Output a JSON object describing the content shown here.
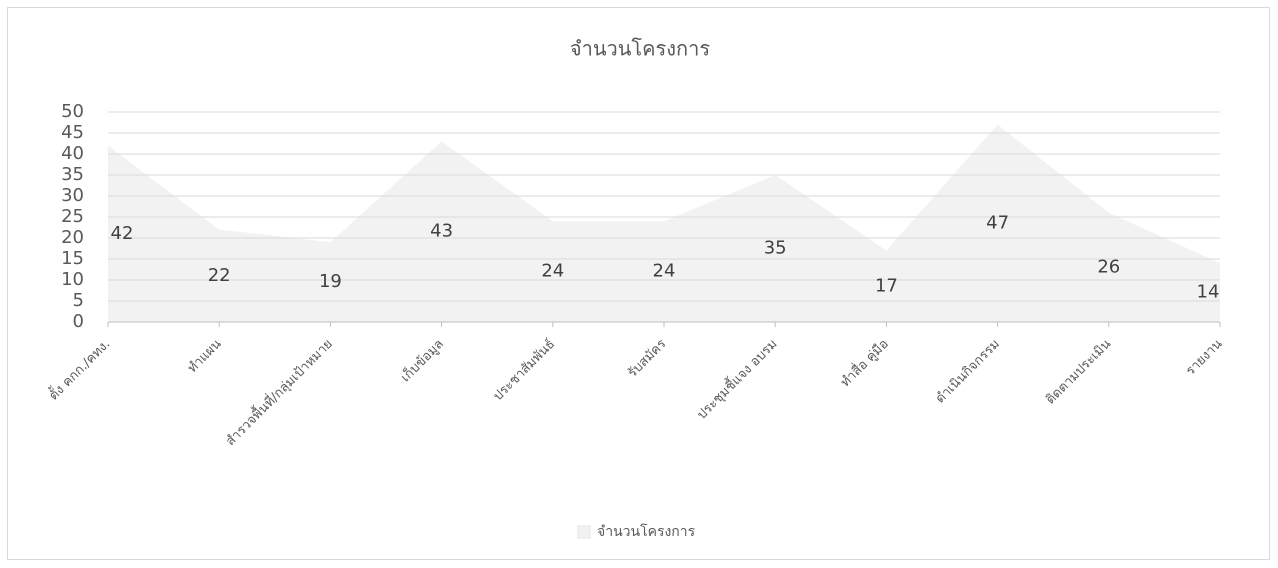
{
  "chart_data": {
    "type": "area",
    "title": "จำนวนโครงการ",
    "categories": [
      "ตั้ง คกก./คทง.",
      "ทำแผน",
      "สำรวจพื้นที่/กลุ่มเป้าหมาย",
      "เก็บข้อมูล",
      "ประชาสัมพันธ์",
      "รับสมัคร",
      "ประชุมชี้แจง อบรม",
      "ทำสื่อ คู่มือ",
      "ดำเนินกิจกรรม",
      "ติดตามประเมิน",
      "รายงาน"
    ],
    "series": [
      {
        "name": "จำนวนโครงการ",
        "color": "#f2f2f2",
        "values": [
          42,
          22,
          19,
          43,
          24,
          24,
          35,
          17,
          47,
          26,
          14
        ]
      }
    ],
    "ylim": [
      0,
      50
    ],
    "yticks": [
      0,
      5,
      10,
      15,
      20,
      25,
      30,
      35,
      40,
      45,
      50
    ],
    "grid": true,
    "legend": "bottom"
  }
}
